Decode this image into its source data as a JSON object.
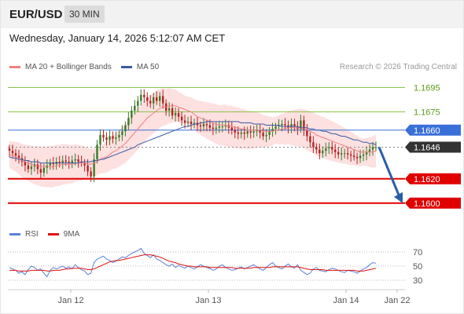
{
  "header": {
    "symbol": "EUR/USD",
    "timeframe": "30 MIN",
    "datetime": "Wednesday, January 14, 2026 5:12:07 AM CET"
  },
  "legend": {
    "ma20_label": "MA 20 + Bollinger Bands",
    "ma50_label": "MA 50",
    "credit": "Research © 2026 Trading Central"
  },
  "rsi_legend": {
    "rsi_label": "RSI",
    "ma9_label": "9MA"
  },
  "colors": {
    "ma20": "#f08080",
    "bollinger_fill": "#fde0e0",
    "ma50": "#3b5ba5",
    "resistance": "#8bc34a",
    "pivot": "#3a6fd8",
    "support": "#e00000",
    "current": "#333333",
    "arrow": "#2a5ea8",
    "candle_up": "#3a7a2a",
    "candle_down": "#b52020",
    "rsi": "#5b7fd8",
    "ma9": "#e01010"
  },
  "chart_data": {
    "type": "candlestick",
    "instrument": "EUR/USD",
    "ylim": [
      1.1585,
      1.1705
    ],
    "x_ticks": [
      "Jan 12",
      "Jan 13",
      "Jan 14",
      "Jan 22"
    ],
    "levels": [
      {
        "value": 1.1695,
        "label": "1.1695",
        "kind": "resistance"
      },
      {
        "value": 1.1675,
        "label": "1.1675",
        "kind": "resistance"
      },
      {
        "value": 1.166,
        "label": "1.1660",
        "kind": "pivot"
      },
      {
        "value": 1.1646,
        "label": "1.1646",
        "kind": "current"
      },
      {
        "value": 1.162,
        "label": "1.1620",
        "kind": "support"
      },
      {
        "value": 1.16,
        "label": "1.1600",
        "kind": "support"
      }
    ],
    "forecast": {
      "from": 1.1646,
      "to": 1.16,
      "direction": "down"
    },
    "price_series": [
      1.1643,
      1.1641,
      1.1639,
      1.1637,
      1.1634,
      1.1631,
      1.1628,
      1.163,
      1.1632,
      1.1628,
      1.1625,
      1.1629,
      1.1631,
      1.1633,
      1.1632,
      1.1634,
      1.1633,
      1.1635,
      1.1634,
      1.1633,
      1.1635,
      1.1636,
      1.1634,
      1.1633,
      1.1631,
      1.1626,
      1.1622,
      1.1636,
      1.1648,
      1.1656,
      1.1654,
      1.1652,
      1.1655,
      1.1653,
      1.1654,
      1.1656,
      1.1659,
      1.1664,
      1.167,
      1.1676,
      1.168,
      1.1684,
      1.1689,
      1.1687,
      1.1684,
      1.1682,
      1.1687,
      1.1684,
      1.1688,
      1.1682,
      1.1676,
      1.1678,
      1.1672,
      1.1674,
      1.1671,
      1.1668,
      1.1666,
      1.1667,
      1.1665,
      1.1666,
      1.1664,
      1.1663,
      1.1665,
      1.1664,
      1.1662,
      1.1661,
      1.1662,
      1.1663,
      1.1663,
      1.1664,
      1.1662,
      1.166,
      1.1658,
      1.1657,
      1.1658,
      1.1657,
      1.1659,
      1.1658,
      1.1659,
      1.166,
      1.1658,
      1.1655,
      1.1656,
      1.1659,
      1.1661,
      1.1663,
      1.1664,
      1.1665,
      1.1664,
      1.1662,
      1.1665,
      1.1663,
      1.1661,
      1.1668,
      1.166,
      1.1655,
      1.165,
      1.1646,
      1.1644,
      1.1641,
      1.1643,
      1.1645,
      1.1646,
      1.1644,
      1.1642,
      1.164,
      1.1641,
      1.1641,
      1.164,
      1.1639,
      1.1638,
      1.1637,
      1.1639,
      1.164,
      1.1642,
      1.1644,
      1.1646,
      1.1646
    ],
    "ma20": [
      1.164,
      1.1639,
      1.1638,
      1.1637,
      1.1635,
      1.1634,
      1.1633,
      1.1632,
      1.1631,
      1.1631,
      1.163,
      1.163,
      1.163,
      1.163,
      1.163,
      1.1631,
      1.1631,
      1.1632,
      1.1632,
      1.1632,
      1.1632,
      1.1633,
      1.1633,
      1.1633,
      1.1633,
      1.1632,
      1.1632,
      1.1633,
      1.1634,
      1.1636,
      1.1637,
      1.1638,
      1.164,
      1.1642,
      1.1643,
      1.1645,
      1.1647,
      1.1649,
      1.1652,
      1.1655,
      1.1658,
      1.1661,
      1.1664,
      1.1667,
      1.167,
      1.1672,
      1.1674,
      1.1676,
      1.1678,
      1.1679,
      1.1679,
      1.168,
      1.168,
      1.168,
      1.1679,
      1.1678,
      1.1677,
      1.1676,
      1.1675,
      1.1673,
      1.1671,
      1.167,
      1.1669,
      1.1668,
      1.1667,
      1.1666,
      1.1665,
      1.1664,
      1.1664,
      1.1664,
      1.1663,
      1.1663,
      1.1662,
      1.1662,
      1.1661,
      1.1661,
      1.166,
      1.166,
      1.166,
      1.166,
      1.166,
      1.1659,
      1.1659,
      1.1659,
      1.1659,
      1.166,
      1.166,
      1.1661,
      1.1661,
      1.1662,
      1.1662,
      1.1662,
      1.1662,
      1.1662,
      1.1661,
      1.166,
      1.1659,
      1.1658,
      1.1656,
      1.1655,
      1.1654,
      1.1653,
      1.1652,
      1.1651,
      1.165,
      1.1649,
      1.1648,
      1.1647,
      1.1646,
      1.1645,
      1.1644,
      1.1643,
      1.1642,
      1.1642,
      1.1642,
      1.1642,
      1.1642,
      1.1643
    ],
    "ma50": [
      1.1638,
      1.1637,
      1.1637,
      1.1636,
      1.1636,
      1.1635,
      1.1635,
      1.1634,
      1.1634,
      1.1634,
      1.1633,
      1.1633,
      1.1633,
      1.1633,
      1.1633,
      1.1633,
      1.1633,
      1.1633,
      1.1633,
      1.1633,
      1.1633,
      1.1633,
      1.1633,
      1.1634,
      1.1634,
      1.1634,
      1.1634,
      1.1635,
      1.1635,
      1.1636,
      1.1636,
      1.1637,
      1.1638,
      1.1639,
      1.164,
      1.1641,
      1.1642,
      1.1643,
      1.1644,
      1.1645,
      1.1646,
      1.1648,
      1.1649,
      1.165,
      1.1651,
      1.1652,
      1.1653,
      1.1654,
      1.1655,
      1.1656,
      1.1657,
      1.1658,
      1.1659,
      1.166,
      1.1661,
      1.1662,
      1.1663,
      1.1663,
      1.1664,
      1.1665,
      1.1665,
      1.1666,
      1.1666,
      1.1667,
      1.1667,
      1.1667,
      1.1667,
      1.1667,
      1.1667,
      1.1667,
      1.1667,
      1.1667,
      1.1667,
      1.1667,
      1.1666,
      1.1666,
      1.1666,
      1.1666,
      1.1665,
      1.1665,
      1.1665,
      1.1665,
      1.1664,
      1.1664,
      1.1664,
      1.1664,
      1.1664,
      1.1663,
      1.1663,
      1.1663,
      1.1663,
      1.1663,
      1.1663,
      1.1662,
      1.1662,
      1.1662,
      1.1661,
      1.1661,
      1.166,
      1.166,
      1.1659,
      1.1659,
      1.1658,
      1.1657,
      1.1657,
      1.1656,
      1.1655,
      1.1655,
      1.1654,
      1.1653,
      1.1652,
      1.1652,
      1.1651,
      1.165,
      1.165,
      1.1649,
      1.1649,
      1.1648
    ],
    "rsi": {
      "ylim": [
        25,
        75
      ],
      "ticks": [
        "70",
        "50",
        "30"
      ],
      "rsi_values": [
        48,
        46,
        44,
        40,
        42,
        38,
        45,
        50,
        48,
        44,
        46,
        40,
        35,
        44,
        48,
        46,
        48,
        50,
        47,
        49,
        46,
        52,
        48,
        45,
        43,
        38,
        40,
        55,
        60,
        62,
        64,
        60,
        58,
        55,
        57,
        60,
        63,
        62,
        65,
        68,
        70,
        72,
        75,
        68,
        65,
        62,
        66,
        60,
        58,
        55,
        52,
        50,
        53,
        48,
        51,
        49,
        47,
        50,
        48,
        46,
        49,
        52,
        50,
        48,
        47,
        44,
        46,
        50,
        52,
        48,
        46,
        44,
        45,
        47,
        49,
        46,
        48,
        50,
        52,
        49,
        46,
        44,
        48,
        52,
        55,
        50,
        48,
        46,
        50,
        53,
        49,
        47,
        52,
        44,
        41,
        38,
        40,
        46,
        48,
        44,
        43,
        42,
        45,
        47,
        46,
        44,
        42,
        41,
        44,
        43,
        42,
        40,
        43,
        46,
        48,
        52,
        55,
        54
      ],
      "ma9_values": [
        44,
        44,
        44,
        43,
        43,
        43,
        43,
        44,
        44,
        44,
        44,
        44,
        43,
        43,
        44,
        44,
        44,
        45,
        46,
        46,
        47,
        47,
        47,
        47,
        46,
        45,
        45,
        46,
        48,
        50,
        52,
        54,
        56,
        57,
        58,
        58,
        59,
        60,
        61,
        62,
        63,
        64,
        65,
        66,
        66,
        66,
        65,
        64,
        63,
        61,
        59,
        57,
        56,
        55,
        53,
        52,
        51,
        50,
        50,
        49,
        49,
        49,
        49,
        49,
        48,
        48,
        48,
        48,
        48,
        48,
        48,
        48,
        47,
        47,
        47,
        47,
        47,
        47,
        48,
        48,
        48,
        48,
        48,
        48,
        49,
        49,
        49,
        49,
        49,
        49,
        49,
        49,
        49,
        48,
        47,
        46,
        45,
        45,
        45,
        45,
        45,
        44,
        44,
        44,
        44,
        44,
        44,
        44,
        44,
        44,
        44,
        43,
        43,
        43,
        44,
        45,
        46,
        47
      ]
    }
  }
}
